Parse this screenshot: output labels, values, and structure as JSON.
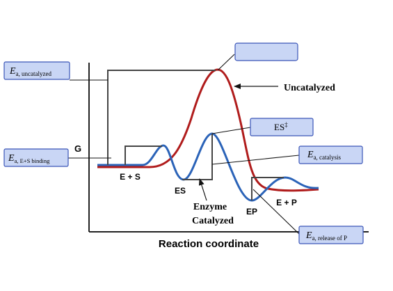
{
  "axes": {
    "ylabel": "G",
    "xlabel": "Reaction coordinate"
  },
  "states": {
    "e_plus_s": "E + S",
    "es": "ES",
    "ep": "EP",
    "e_plus_p": "E + P"
  },
  "curve_labels": {
    "uncatalyzed": "Uncatalyzed",
    "enzyme_line1": "Enzyme",
    "enzyme_line2": "Catalyzed"
  },
  "boxes": {
    "ea_uncatalyzed": {
      "main": "E",
      "sub": "a, uncatalyzed"
    },
    "top_box": {
      "text": ""
    },
    "es_double_dagger": {
      "main": "ES",
      "sup": "‡"
    },
    "ea_catalysis": {
      "main": "E",
      "sub": "a, catalysis"
    },
    "ea_binding": {
      "main": "E",
      "sub": "a, E+S binding"
    },
    "ea_release": {
      "main": "E",
      "sub": "a, release of P"
    }
  },
  "colors": {
    "uncatalyzed_curve": "#b01c1c",
    "catalyzed_curve": "#2b63b8",
    "axis": "#222222",
    "box_fill": "#c9d6f5",
    "box_border": "#3a55b8"
  }
}
